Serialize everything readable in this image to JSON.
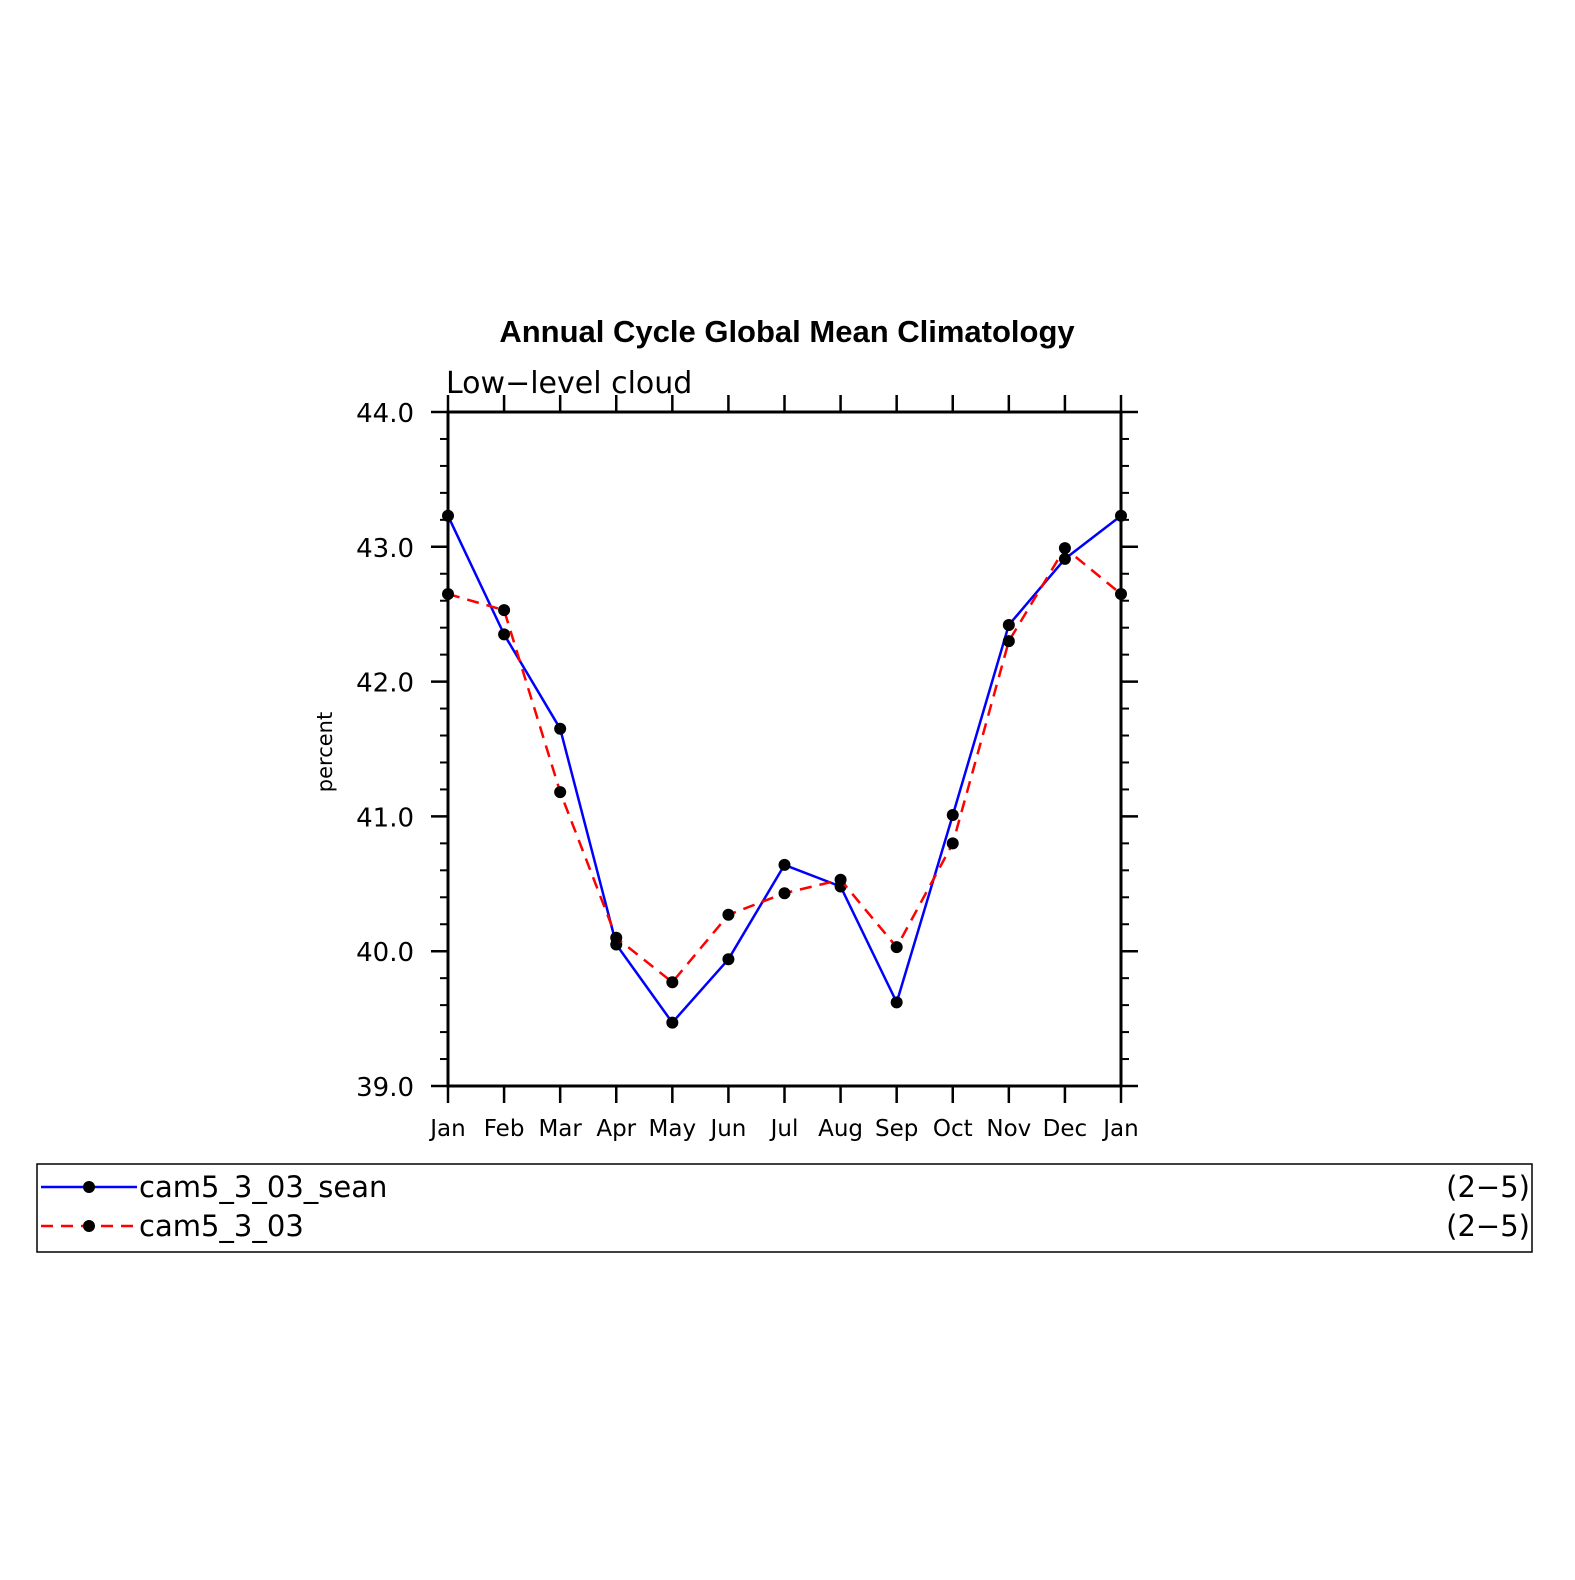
{
  "chart_data": {
    "type": "line",
    "title": "Annual Cycle Global Mean Climatology",
    "subtitle": "Low−level cloud",
    "xlabel": "",
    "ylabel": "percent",
    "categories": [
      "Jan",
      "Feb",
      "Mar",
      "Apr",
      "May",
      "Jun",
      "Jul",
      "Aug",
      "Sep",
      "Oct",
      "Nov",
      "Dec",
      "Jan"
    ],
    "y_ticks": [
      "39.0",
      "40.0",
      "41.0",
      "42.0",
      "43.0",
      "44.0"
    ],
    "ylim": [
      39.0,
      44.0
    ],
    "grid": false,
    "legend_placement": "bottom",
    "series": [
      {
        "name": "cam5_3_03_sean",
        "legend_note": "(2−5)",
        "color": "#0000ff",
        "dashed": false,
        "values": [
          43.23,
          42.35,
          41.65,
          40.05,
          39.47,
          39.94,
          40.64,
          40.48,
          39.62,
          41.01,
          42.42,
          42.91,
          43.23
        ]
      },
      {
        "name": "cam5_3_03",
        "legend_note": "(2−5)",
        "color": "#ff0000",
        "dashed": true,
        "values": [
          42.65,
          42.53,
          41.18,
          40.1,
          39.77,
          40.27,
          40.43,
          40.53,
          40.03,
          40.8,
          42.3,
          42.99,
          42.65
        ]
      }
    ]
  }
}
